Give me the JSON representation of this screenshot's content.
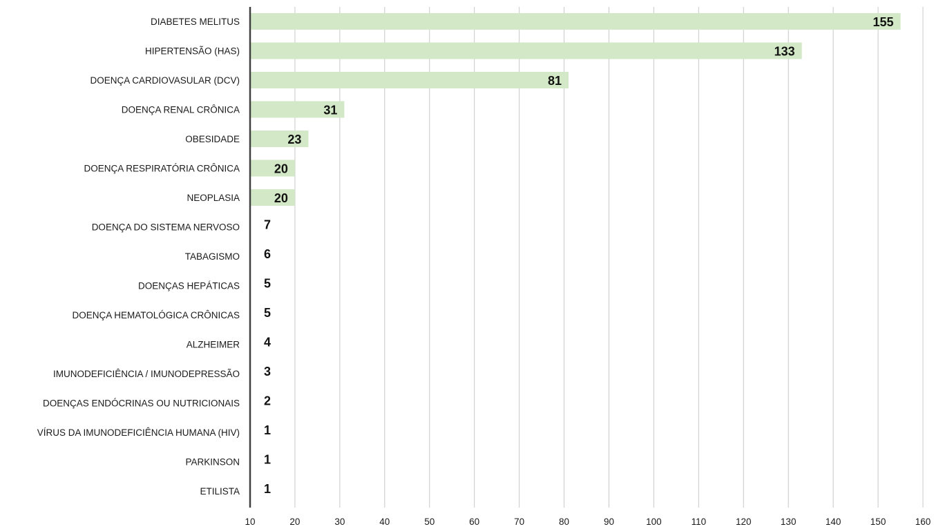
{
  "chart_data": {
    "type": "bar",
    "orientation": "horizontal",
    "categories": [
      "DIABETES MELITUS",
      "HIPERTENSÃO (HAS)",
      "DOENÇA CARDIOVASULAR (DCV)",
      "DOENÇA RENAL CRÔNICA",
      "OBESIDADE",
      "DOENÇA RESPIRATÓRIA CRÔNICA",
      "NEOPLASIA",
      "DOENÇA DO SISTEMA NERVOSO",
      "TABAGISMO",
      "DOENÇAS HEPÁTICAS",
      "DOENÇA HEMATOLÓGICA CRÔNICAS",
      "ALZHEIMER",
      "IMUNODEFICIÊNCIA / IMUNODEPRESSÃO",
      "DOENÇAS ENDÓCRINAS OU NUTRICIONAIS",
      "VÍRUS DA IMUNODEFICIÊNCIA HUMANA (HIV)",
      "PARKINSON",
      "ETILISTA"
    ],
    "values": [
      155,
      133,
      81,
      31,
      23,
      20,
      20,
      7,
      6,
      5,
      5,
      4,
      3,
      2,
      1,
      1,
      1
    ],
    "value_labels": [
      "155",
      "133",
      "81",
      "31",
      "23",
      "20",
      "20",
      "7",
      "6",
      "5",
      "5",
      "4",
      "3",
      "2",
      "1",
      "1",
      "1"
    ],
    "xticks": [
      "10",
      "20",
      "30",
      "40",
      "50",
      "60",
      "70",
      "80",
      "90",
      "100",
      "110",
      "120",
      "130",
      "140",
      "150",
      "160"
    ],
    "xlim": [
      10,
      160
    ],
    "title": "",
    "xlabel": "",
    "ylabel": "",
    "grid": true,
    "bar_color": "#d2e8c6",
    "axis_color": "#404040",
    "grid_color": "#c8c8c8"
  }
}
